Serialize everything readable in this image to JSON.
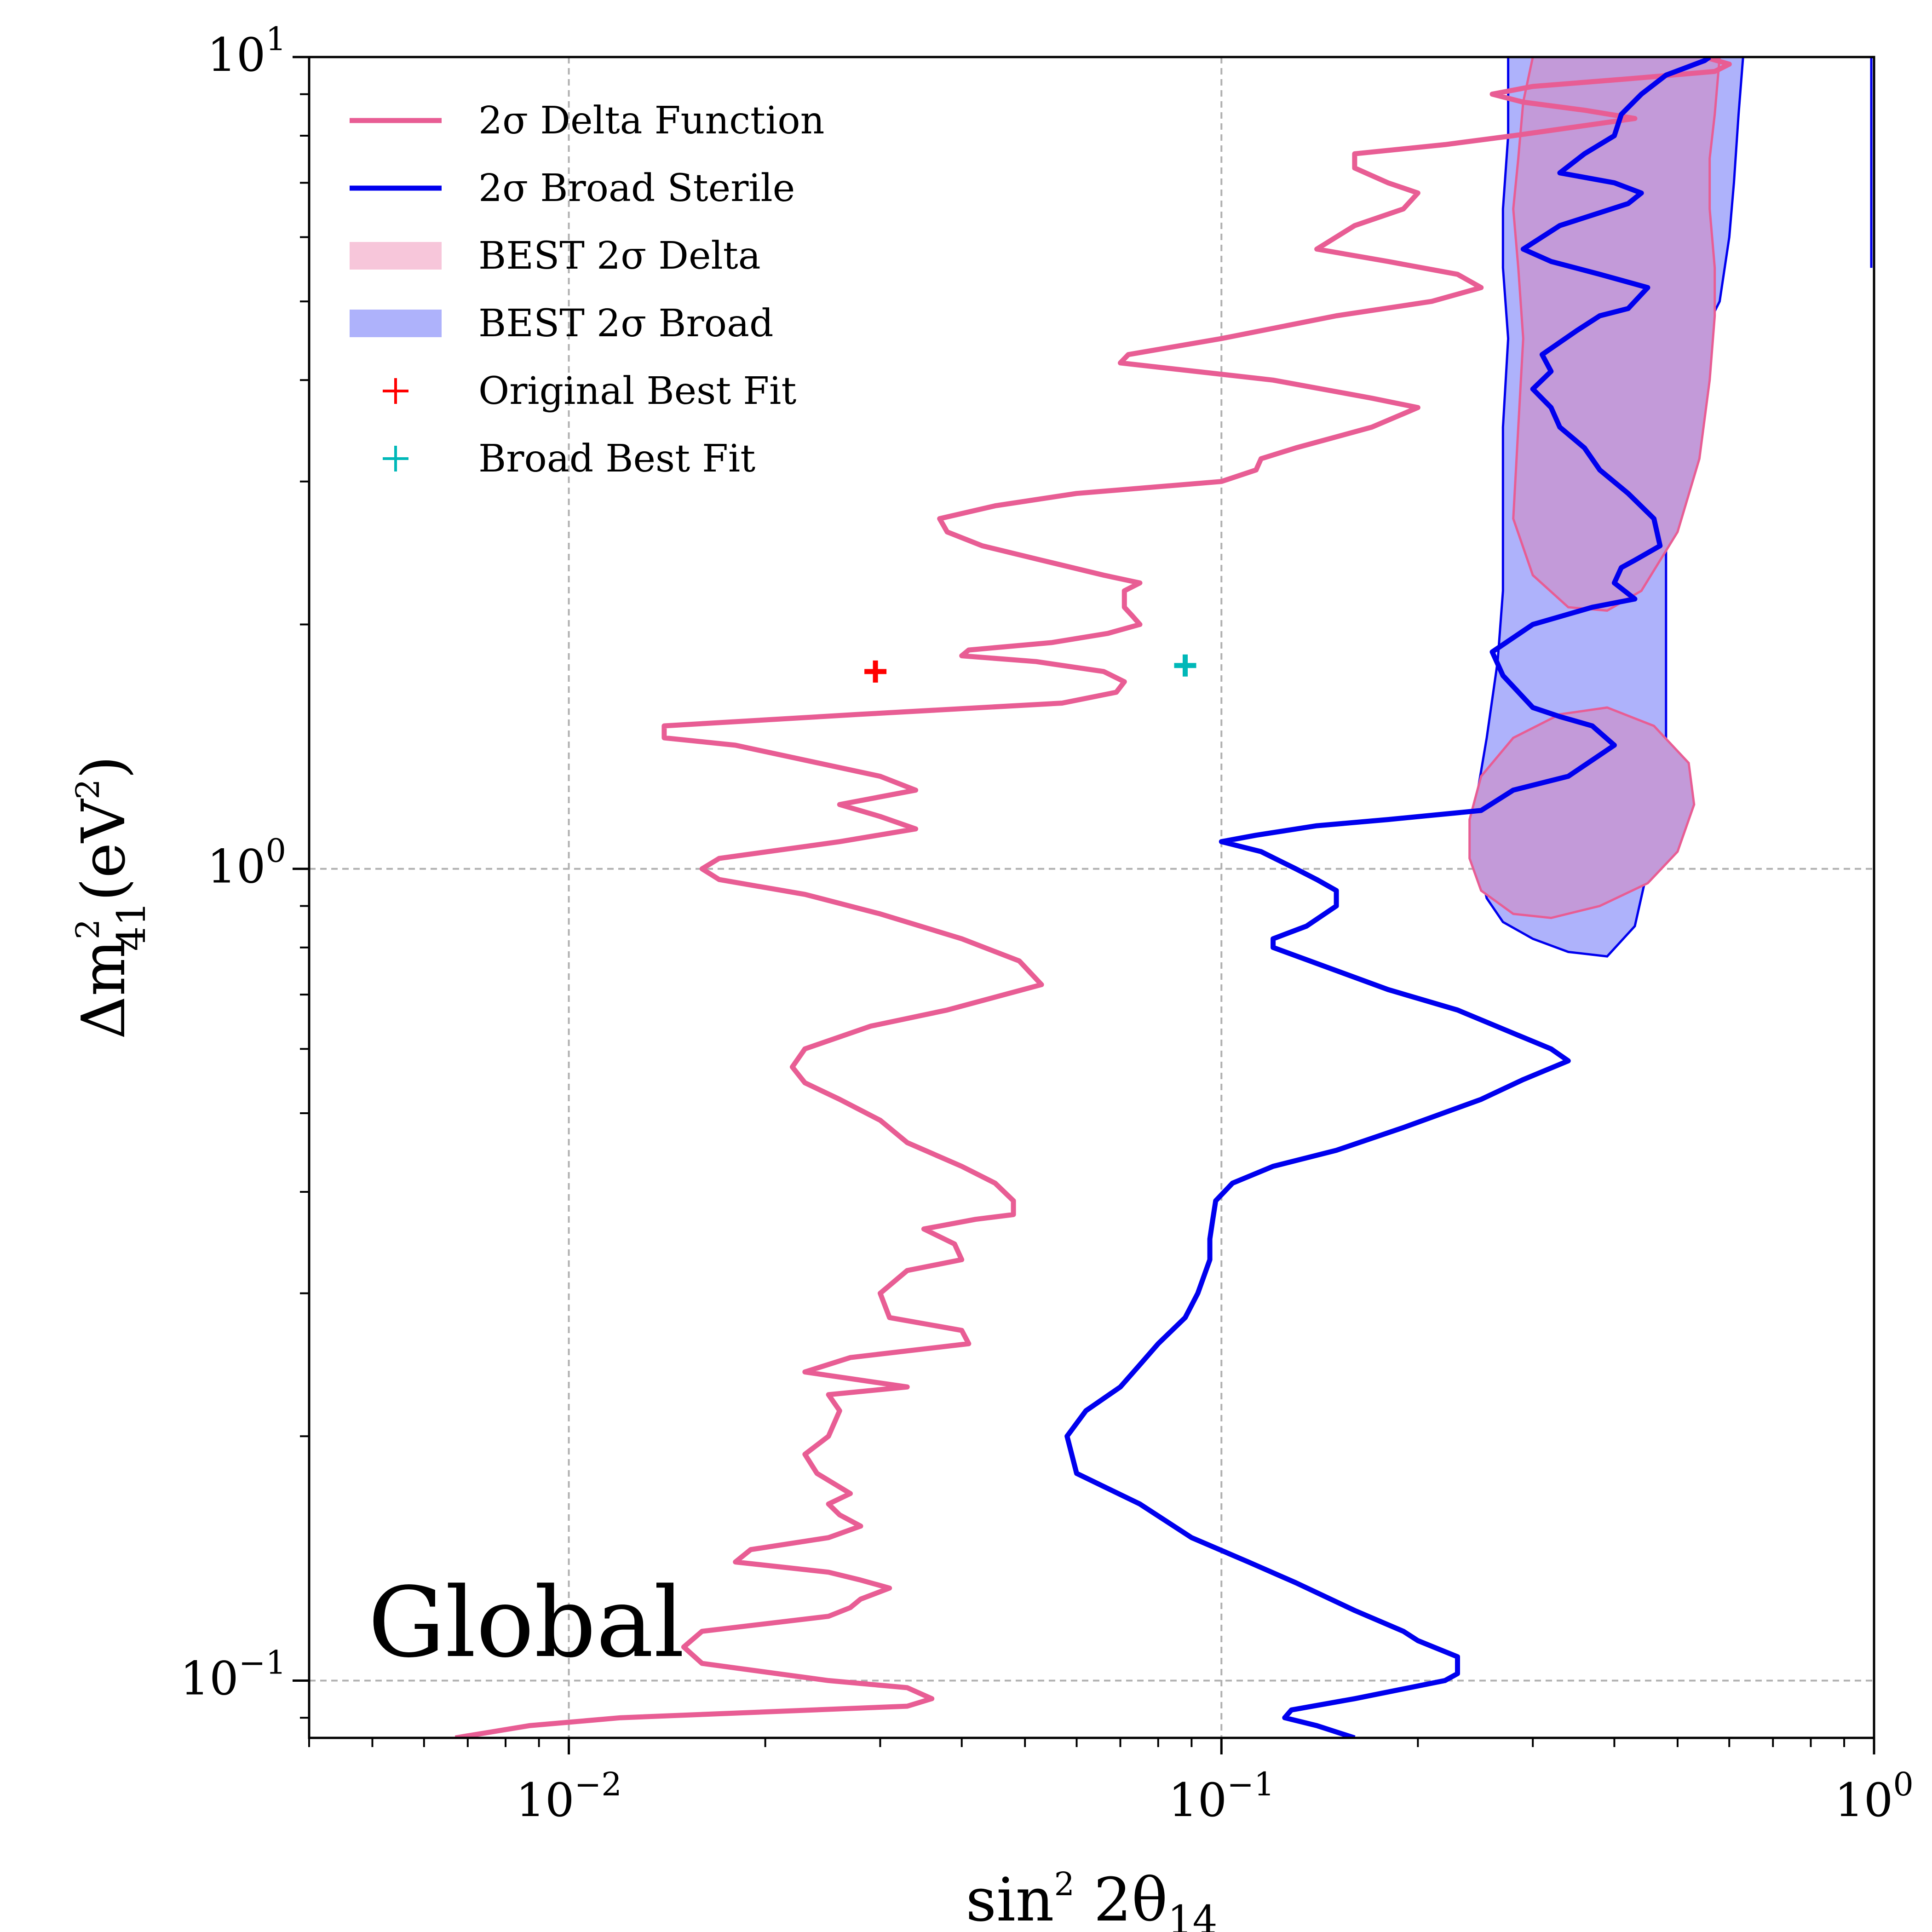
{
  "chart_data": {
    "type": "line",
    "title": "",
    "annotation": "Global",
    "x_scale": "log",
    "y_scale": "log",
    "xlim": [
      0.004,
      1.0
    ],
    "ylim": [
      0.085,
      10.0
    ],
    "grid": true,
    "legend_placement": "top-left",
    "xlabel": {
      "main": "sin",
      "sup": "2",
      "mid": " 2θ",
      "sub": "14"
    },
    "ylabel": {
      "main": "Δm",
      "sup": "2",
      "sub": "41",
      "unit_open": "(eV",
      "unit_sup": "2",
      "unit_close": ")"
    },
    "x_ticks": [
      {
        "value": 0.01,
        "base": "10",
        "exp": "−2"
      },
      {
        "value": 0.1,
        "base": "10",
        "exp": "−1"
      },
      {
        "value": 1.0,
        "base": "10",
        "exp": "0"
      }
    ],
    "y_ticks": [
      {
        "value": 0.1,
        "base": "10",
        "exp": "−1"
      },
      {
        "value": 1.0,
        "base": "10",
        "exp": "0"
      },
      {
        "value": 10.0,
        "base": "10",
        "exp": "1"
      }
    ],
    "legend": [
      {
        "label": "2σ Delta Function",
        "kind": "line",
        "color": "#e85d94"
      },
      {
        "label": "2σ Broad Sterile",
        "kind": "line",
        "color": "#0000ee"
      },
      {
        "label": "BEST 2σ Delta",
        "kind": "patch",
        "color": "#f7c6da"
      },
      {
        "label": "BEST 2σ Broad",
        "kind": "patch",
        "color": "#aeb2fb"
      },
      {
        "label": "Original Best Fit",
        "kind": "marker",
        "color": "#ff0000"
      },
      {
        "label": "Broad Best Fit",
        "kind": "marker",
        "color": "#00b8b8"
      }
    ],
    "colors": {
      "delta_line": "#e85d94",
      "broad_line": "#0000ee",
      "best_delta_fill": "#c39ad9",
      "best_delta_edge": "#e85d94",
      "best_broad_fill": "#aeb2fb",
      "best_broad_edge": "#0000ee",
      "original_fit": "#ff0000",
      "broad_fit": "#00b8b8"
    },
    "series": [
      {
        "name": "2σ Delta Function",
        "points": [
          [
            0.0067,
            0.085
          ],
          [
            0.0087,
            0.088
          ],
          [
            0.012,
            0.09
          ],
          [
            0.033,
            0.093
          ],
          [
            0.036,
            0.095
          ],
          [
            0.033,
            0.098
          ],
          [
            0.025,
            0.1
          ],
          [
            0.016,
            0.105
          ],
          [
            0.015,
            0.11
          ],
          [
            0.016,
            0.115
          ],
          [
            0.025,
            0.12
          ],
          [
            0.027,
            0.123
          ],
          [
            0.028,
            0.126
          ],
          [
            0.031,
            0.13
          ],
          [
            0.028,
            0.133
          ],
          [
            0.025,
            0.136
          ],
          [
            0.018,
            0.14
          ],
          [
            0.019,
            0.145
          ],
          [
            0.025,
            0.15
          ],
          [
            0.028,
            0.155
          ],
          [
            0.026,
            0.16
          ],
          [
            0.025,
            0.165
          ],
          [
            0.027,
            0.17
          ],
          [
            0.024,
            0.18
          ],
          [
            0.023,
            0.19
          ],
          [
            0.025,
            0.2
          ],
          [
            0.026,
            0.215
          ],
          [
            0.025,
            0.225
          ],
          [
            0.033,
            0.23
          ],
          [
            0.023,
            0.24
          ],
          [
            0.027,
            0.25
          ],
          [
            0.041,
            0.26
          ],
          [
            0.04,
            0.27
          ],
          [
            0.031,
            0.28
          ],
          [
            0.03,
            0.3
          ],
          [
            0.033,
            0.32
          ],
          [
            0.04,
            0.33
          ],
          [
            0.039,
            0.345
          ],
          [
            0.035,
            0.36
          ],
          [
            0.042,
            0.37
          ],
          [
            0.048,
            0.375
          ],
          [
            0.048,
            0.39
          ],
          [
            0.045,
            0.41
          ],
          [
            0.04,
            0.43
          ],
          [
            0.033,
            0.46
          ],
          [
            0.03,
            0.49
          ],
          [
            0.026,
            0.52
          ],
          [
            0.023,
            0.545
          ],
          [
            0.022,
            0.57
          ],
          [
            0.023,
            0.6
          ],
          [
            0.029,
            0.64
          ],
          [
            0.038,
            0.67
          ],
          [
            0.053,
            0.72
          ],
          [
            0.049,
            0.77
          ],
          [
            0.04,
            0.82
          ],
          [
            0.03,
            0.88
          ],
          [
            0.023,
            0.93
          ],
          [
            0.017,
            0.97
          ],
          [
            0.016,
            1.0
          ],
          [
            0.017,
            1.03
          ],
          [
            0.026,
            1.08
          ],
          [
            0.034,
            1.12
          ],
          [
            0.03,
            1.16
          ],
          [
            0.026,
            1.2
          ],
          [
            0.034,
            1.25
          ],
          [
            0.03,
            1.3
          ],
          [
            0.018,
            1.42
          ],
          [
            0.014,
            1.45
          ],
          [
            0.014,
            1.5
          ],
          [
            0.028,
            1.55
          ],
          [
            0.057,
            1.6
          ],
          [
            0.069,
            1.65
          ],
          [
            0.071,
            1.7
          ],
          [
            0.066,
            1.75
          ],
          [
            0.052,
            1.8
          ],
          [
            0.04,
            1.83
          ],
          [
            0.041,
            1.86
          ],
          [
            0.055,
            1.9
          ],
          [
            0.067,
            1.95
          ],
          [
            0.075,
            2.0
          ],
          [
            0.073,
            2.05
          ],
          [
            0.071,
            2.1
          ],
          [
            0.071,
            2.2
          ],
          [
            0.075,
            2.25
          ],
          [
            0.066,
            2.3
          ],
          [
            0.053,
            2.4
          ],
          [
            0.043,
            2.5
          ],
          [
            0.038,
            2.6
          ],
          [
            0.037,
            2.7
          ],
          [
            0.045,
            2.8
          ],
          [
            0.06,
            2.9
          ],
          [
            0.1,
            3.0
          ],
          [
            0.113,
            3.1
          ],
          [
            0.115,
            3.2
          ],
          [
            0.13,
            3.3
          ],
          [
            0.17,
            3.5
          ],
          [
            0.2,
            3.7
          ],
          [
            0.17,
            3.8
          ],
          [
            0.12,
            4.0
          ],
          [
            0.07,
            4.2
          ],
          [
            0.072,
            4.3
          ],
          [
            0.1,
            4.5
          ],
          [
            0.15,
            4.8
          ],
          [
            0.21,
            5.0
          ],
          [
            0.25,
            5.2
          ],
          [
            0.23,
            5.4
          ],
          [
            0.18,
            5.6
          ],
          [
            0.14,
            5.8
          ],
          [
            0.16,
            6.2
          ],
          [
            0.19,
            6.5
          ],
          [
            0.2,
            6.8
          ],
          [
            0.18,
            7.0
          ],
          [
            0.16,
            7.3
          ],
          [
            0.16,
            7.6
          ],
          [
            0.22,
            7.8
          ],
          [
            0.28,
            8.0
          ],
          [
            0.43,
            8.4
          ],
          [
            0.36,
            8.6
          ],
          [
            0.29,
            8.8
          ],
          [
            0.26,
            9.0
          ],
          [
            0.3,
            9.2
          ],
          [
            0.42,
            9.4
          ],
          [
            0.57,
            9.6
          ],
          [
            0.6,
            9.8
          ],
          [
            0.55,
            10.0
          ]
        ]
      },
      {
        "name": "2σ Broad Sterile",
        "points": [
          [
            0.16,
            0.085
          ],
          [
            0.14,
            0.088
          ],
          [
            0.125,
            0.09
          ],
          [
            0.128,
            0.092
          ],
          [
            0.16,
            0.095
          ],
          [
            0.22,
            0.1
          ],
          [
            0.23,
            0.102
          ],
          [
            0.23,
            0.107
          ],
          [
            0.2,
            0.112
          ],
          [
            0.19,
            0.115
          ],
          [
            0.16,
            0.122
          ],
          [
            0.13,
            0.132
          ],
          [
            0.11,
            0.14
          ],
          [
            0.09,
            0.15
          ],
          [
            0.075,
            0.165
          ],
          [
            0.06,
            0.18
          ],
          [
            0.058,
            0.2
          ],
          [
            0.062,
            0.215
          ],
          [
            0.07,
            0.23
          ],
          [
            0.075,
            0.245
          ],
          [
            0.08,
            0.26
          ],
          [
            0.088,
            0.28
          ],
          [
            0.092,
            0.3
          ],
          [
            0.096,
            0.33
          ],
          [
            0.096,
            0.35
          ],
          [
            0.097,
            0.37
          ],
          [
            0.098,
            0.39
          ],
          [
            0.104,
            0.41
          ],
          [
            0.12,
            0.43
          ],
          [
            0.15,
            0.45
          ],
          [
            0.19,
            0.48
          ],
          [
            0.25,
            0.52
          ],
          [
            0.29,
            0.55
          ],
          [
            0.34,
            0.58
          ],
          [
            0.32,
            0.6
          ],
          [
            0.29,
            0.62
          ],
          [
            0.23,
            0.67
          ],
          [
            0.18,
            0.71
          ],
          [
            0.12,
            0.8
          ],
          [
            0.12,
            0.82
          ],
          [
            0.135,
            0.85
          ],
          [
            0.15,
            0.9
          ],
          [
            0.15,
            0.94
          ],
          [
            0.14,
            0.97
          ],
          [
            0.13,
            1.0
          ],
          [
            0.115,
            1.05
          ],
          [
            0.1,
            1.08
          ],
          [
            0.113,
            1.1
          ],
          [
            0.14,
            1.13
          ],
          [
            0.18,
            1.15
          ],
          [
            0.25,
            1.18
          ],
          [
            0.28,
            1.25
          ],
          [
            0.34,
            1.3
          ],
          [
            0.4,
            1.42
          ],
          [
            0.37,
            1.5
          ],
          [
            0.33,
            1.54
          ],
          [
            0.3,
            1.58
          ],
          [
            0.27,
            1.73
          ],
          [
            0.26,
            1.85
          ],
          [
            0.3,
            2.0
          ],
          [
            0.37,
            2.1
          ],
          [
            0.43,
            2.15
          ],
          [
            0.4,
            2.25
          ],
          [
            0.41,
            2.35
          ],
          [
            0.43,
            2.4
          ],
          [
            0.47,
            2.5
          ],
          [
            0.46,
            2.7
          ],
          [
            0.42,
            2.9
          ],
          [
            0.38,
            3.1
          ],
          [
            0.36,
            3.3
          ],
          [
            0.33,
            3.5
          ],
          [
            0.32,
            3.7
          ],
          [
            0.3,
            3.9
          ],
          [
            0.32,
            4.1
          ],
          [
            0.31,
            4.3
          ],
          [
            0.35,
            4.6
          ],
          [
            0.38,
            4.8
          ],
          [
            0.42,
            4.9
          ],
          [
            0.45,
            5.2
          ],
          [
            0.38,
            5.4
          ],
          [
            0.32,
            5.6
          ],
          [
            0.29,
            5.8
          ],
          [
            0.33,
            6.2
          ],
          [
            0.42,
            6.6
          ],
          [
            0.44,
            6.8
          ],
          [
            0.4,
            7.0
          ],
          [
            0.33,
            7.2
          ],
          [
            0.36,
            7.6
          ],
          [
            0.4,
            8.0
          ],
          [
            0.41,
            8.5
          ],
          [
            0.44,
            9.0
          ],
          [
            0.48,
            9.5
          ],
          [
            0.55,
            9.9
          ],
          [
            0.56,
            10.0
          ]
        ]
      }
    ],
    "regions": [
      {
        "name": "BEST 2σ Broad",
        "points": [
          [
            0.39,
            0.78
          ],
          [
            0.34,
            0.79
          ],
          [
            0.3,
            0.82
          ],
          [
            0.27,
            0.86
          ],
          [
            0.255,
            0.92
          ],
          [
            0.245,
            1.05
          ],
          [
            0.245,
            1.2
          ],
          [
            0.255,
            1.45
          ],
          [
            0.265,
            1.8
          ],
          [
            0.27,
            2.2
          ],
          [
            0.27,
            2.7
          ],
          [
            0.27,
            3.5
          ],
          [
            0.275,
            4.5
          ],
          [
            0.27,
            5.5
          ],
          [
            0.27,
            6.5
          ],
          [
            0.275,
            8.0
          ],
          [
            0.275,
            10.0
          ],
          [
            0.63,
            10.0
          ],
          [
            0.62,
            8.5
          ],
          [
            0.61,
            7.0
          ],
          [
            0.6,
            6.0
          ],
          [
            0.58,
            5.0
          ],
          [
            0.52,
            4.2
          ],
          [
            0.49,
            3.5
          ],
          [
            0.48,
            2.8
          ],
          [
            0.48,
            2.2
          ],
          [
            0.48,
            1.8
          ],
          [
            0.48,
            1.4
          ],
          [
            0.47,
            1.15
          ],
          [
            0.45,
            1.0
          ],
          [
            0.43,
            0.85
          ]
        ]
      },
      {
        "name": "BEST 2σ Delta (low)",
        "points": [
          [
            0.24,
            1.15
          ],
          [
            0.25,
            1.3
          ],
          [
            0.28,
            1.45
          ],
          [
            0.33,
            1.55
          ],
          [
            0.39,
            1.58
          ],
          [
            0.46,
            1.5
          ],
          [
            0.52,
            1.35
          ],
          [
            0.53,
            1.2
          ],
          [
            0.5,
            1.05
          ],
          [
            0.45,
            0.96
          ],
          [
            0.38,
            0.9
          ],
          [
            0.32,
            0.87
          ],
          [
            0.28,
            0.88
          ],
          [
            0.25,
            0.94
          ],
          [
            0.24,
            1.03
          ]
        ]
      },
      {
        "name": "BEST 2σ Delta (high)",
        "points": [
          [
            0.3,
            10.0
          ],
          [
            0.58,
            10.0
          ],
          [
            0.57,
            8.5
          ],
          [
            0.56,
            7.5
          ],
          [
            0.56,
            6.5
          ],
          [
            0.57,
            5.5
          ],
          [
            0.57,
            4.8
          ],
          [
            0.56,
            4.0
          ],
          [
            0.54,
            3.2
          ],
          [
            0.5,
            2.6
          ],
          [
            0.44,
            2.2
          ],
          [
            0.39,
            2.08
          ],
          [
            0.34,
            2.1
          ],
          [
            0.3,
            2.3
          ],
          [
            0.28,
            2.7
          ],
          [
            0.285,
            3.5
          ],
          [
            0.29,
            4.5
          ],
          [
            0.285,
            5.5
          ],
          [
            0.28,
            6.5
          ],
          [
            0.285,
            7.5
          ],
          [
            0.29,
            8.8
          ]
        ]
      }
    ],
    "best_fits": [
      {
        "name": "Original Best Fit",
        "x": 0.0295,
        "y": 1.75
      },
      {
        "name": "Broad Best Fit",
        "x": 0.088,
        "y": 1.78
      }
    ]
  }
}
